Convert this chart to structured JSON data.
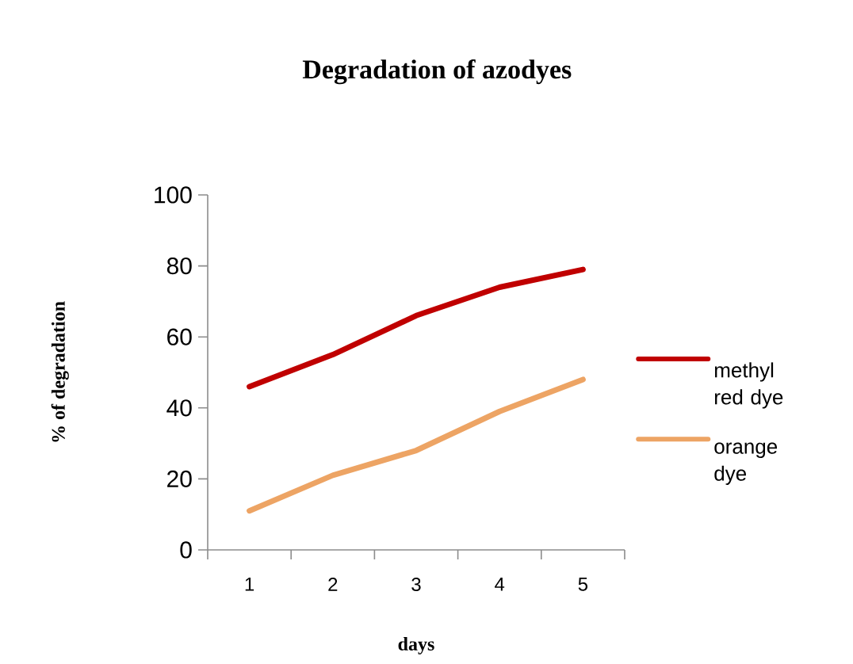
{
  "chart_data": {
    "type": "line",
    "title": "Degradation of azodyes",
    "xlabel": "days",
    "ylabel": "% of degradation",
    "categories": [
      "1",
      "2",
      "3",
      "4",
      "5"
    ],
    "series": [
      {
        "name": "methyl red dye",
        "color": "#c00000",
        "values": [
          46,
          55,
          66,
          74,
          79
        ]
      },
      {
        "name": "orange dye",
        "color": "#eda464",
        "values": [
          11,
          21,
          28,
          39,
          48
        ]
      }
    ],
    "ylim": [
      0,
      100
    ],
    "yticks": [
      0,
      20,
      40,
      60,
      80,
      100
    ],
    "grid": false,
    "legend": "right",
    "marker": "none",
    "line_style": "solid"
  }
}
